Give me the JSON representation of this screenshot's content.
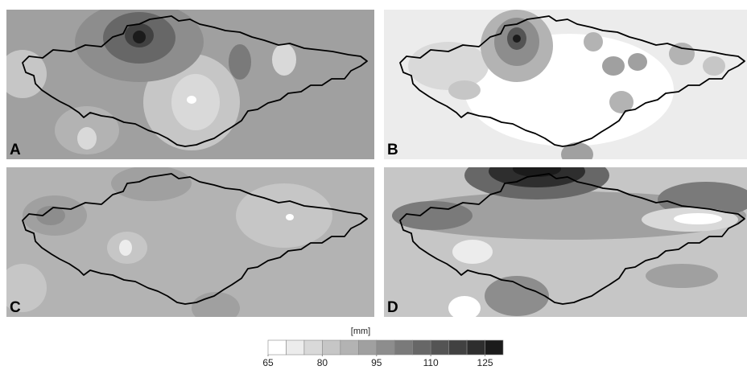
{
  "panels": [
    {
      "label": "A"
    },
    {
      "label": "B"
    },
    {
      "label": "C"
    },
    {
      "label": "D"
    }
  ],
  "colorbar": {
    "unit": "[mm]",
    "range": [
      65,
      130
    ],
    "ticks": [
      65,
      80,
      95,
      110,
      125
    ],
    "colors": [
      "#ffffff",
      "#ececec",
      "#d9d9d9",
      "#c6c6c6",
      "#b3b3b3",
      "#a0a0a0",
      "#8d8d8d",
      "#7a7a7a",
      "#676767",
      "#545454",
      "#414141",
      "#2e2e2e",
      "#1b1b1b"
    ]
  }
}
